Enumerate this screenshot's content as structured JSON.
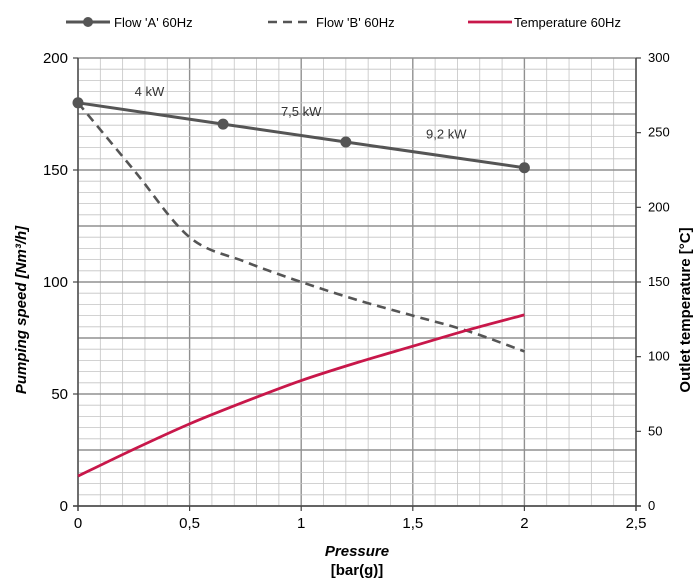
{
  "chart_data": {
    "type": "line",
    "title": "",
    "xlabel": "Pressure",
    "xlabel_unit": "[bar(g)]",
    "ylabel": "Pumping speed [Nm³/h]",
    "ylabel_right": "Outlet temperature [°C]",
    "xlim": [
      0,
      2.5
    ],
    "ylim": [
      0,
      200
    ],
    "ylim_right": [
      0,
      300
    ],
    "x_ticks": [
      "0",
      "0,5",
      "1",
      "1,5",
      "2",
      "2,5"
    ],
    "y_ticks": [
      "0",
      "50",
      "100",
      "150",
      "200"
    ],
    "y_right_ticks": [
      "0",
      "50",
      "100",
      "150",
      "200",
      "250",
      "300"
    ],
    "grid": true,
    "legend_position": "top",
    "colors": {
      "flow_a": "#555555",
      "flow_b": "#555555",
      "temperature": "#c8174a",
      "grid": "#a0a0a0"
    },
    "series": [
      {
        "name": "Flow 'A' 60Hz",
        "axis": "left",
        "style": "solid-marker",
        "x": [
          0,
          0.65,
          1.2,
          2
        ],
        "y": [
          180,
          170.5,
          162.5,
          151
        ]
      },
      {
        "name": "Flow 'B' 60Hz",
        "axis": "left",
        "style": "dashed",
        "x": [
          0,
          0.25,
          0.5,
          0.75,
          1,
          1.25,
          1.5,
          1.75,
          2
        ],
        "y": [
          180,
          150,
          120,
          109,
          100,
          92,
          85,
          78,
          69
        ]
      },
      {
        "name": "Temperature 60Hz",
        "axis": "right",
        "style": "solid",
        "x": [
          0,
          0.25,
          0.5,
          0.75,
          1,
          1.25,
          1.5,
          1.75,
          2
        ],
        "y": [
          20,
          38,
          55,
          70,
          84,
          96,
          107,
          118,
          128
        ]
      }
    ],
    "annotations": [
      {
        "text": "4 kW",
        "x": 0.32,
        "y": 183
      },
      {
        "text": "7,5 kW",
        "x": 1.0,
        "y": 174
      },
      {
        "text": "9,2 kW",
        "x": 1.65,
        "y": 164
      }
    ]
  }
}
